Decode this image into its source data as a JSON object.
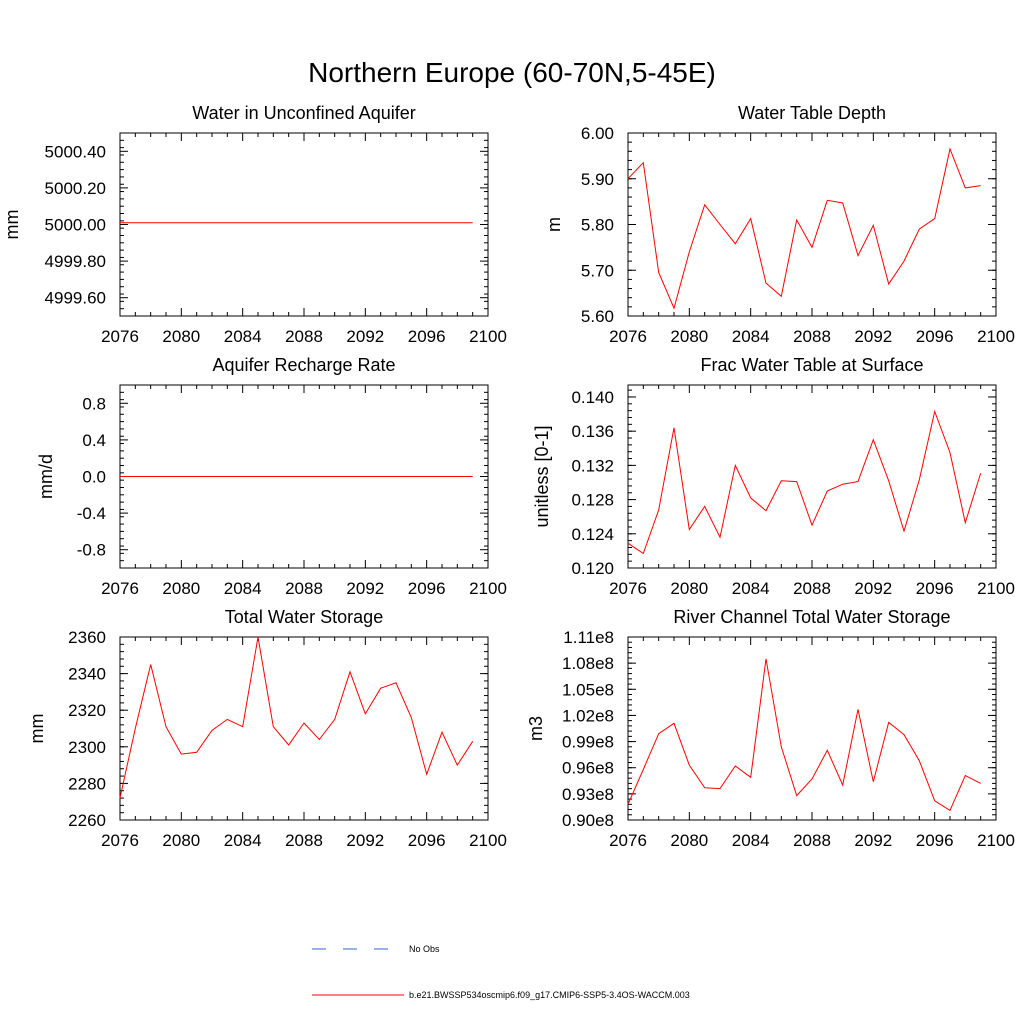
{
  "figure_title": "Northern Europe (60-70N,5-45E)",
  "colors": {
    "series": "#ff0000",
    "obs": "#3a5fcd",
    "axis": "#000000"
  },
  "legend": {
    "obs_label": "No Obs",
    "model_label": "b.e21.BWSSP534oscmip6.f09_g17.CMIP6-SSP5-3.4OS-WACCM.003"
  },
  "chart_data": [
    {
      "type": "line",
      "title": "Water in Unconfined Aquifer",
      "xlabel": "",
      "ylabel": "mm",
      "xlim": [
        2076,
        2100
      ],
      "xticks": [
        "2076",
        "2080",
        "2084",
        "2088",
        "2092",
        "2096",
        "2100"
      ],
      "ylim": [
        4999.5,
        5000.5
      ],
      "yticks": [
        "4999.60",
        "4999.80",
        "5000.00",
        "5000.20",
        "5000.40"
      ],
      "x": [
        2076,
        2077,
        2078,
        2079,
        2080,
        2081,
        2082,
        2083,
        2084,
        2085,
        2086,
        2087,
        2088,
        2089,
        2090,
        2091,
        2092,
        2093,
        2094,
        2095,
        2096,
        2097,
        2098,
        2099
      ],
      "series": [
        {
          "name": "b.e21.BWSSP534oscmip6.f09_g17.CMIP6-SSP5-3.4OS-WACCM.003",
          "values": [
            5000.01,
            5000.01,
            5000.01,
            5000.01,
            5000.01,
            5000.01,
            5000.01,
            5000.01,
            5000.01,
            5000.01,
            5000.01,
            5000.01,
            5000.01,
            5000.01,
            5000.01,
            5000.01,
            5000.01,
            5000.01,
            5000.01,
            5000.01,
            5000.01,
            5000.01,
            5000.01,
            5000.01
          ]
        }
      ]
    },
    {
      "type": "line",
      "title": "Water Table Depth",
      "xlabel": "",
      "ylabel": "m",
      "xlim": [
        2076,
        2100
      ],
      "xticks": [
        "2076",
        "2080",
        "2084",
        "2088",
        "2092",
        "2096",
        "2100"
      ],
      "ylim": [
        5.6,
        6.0
      ],
      "yticks": [
        "5.60",
        "5.70",
        "5.80",
        "5.90",
        "6.00"
      ],
      "x": [
        2076,
        2077,
        2078,
        2079,
        2080,
        2081,
        2082,
        2083,
        2084,
        2085,
        2086,
        2087,
        2088,
        2089,
        2090,
        2091,
        2092,
        2093,
        2094,
        2095,
        2096,
        2097,
        2098,
        2099
      ],
      "series": [
        {
          "name": "b.e21.BWSSP534oscmip6.f09_g17.CMIP6-SSP5-3.4OS-WACCM.003",
          "values": [
            5.9,
            5.935,
            5.695,
            5.617,
            5.74,
            5.843,
            5.8,
            5.758,
            5.813,
            5.672,
            5.643,
            5.81,
            5.75,
            5.853,
            5.847,
            5.732,
            5.798,
            5.67,
            5.72,
            5.79,
            5.813,
            5.965,
            5.88,
            5.885
          ]
        }
      ]
    },
    {
      "type": "line",
      "title": "Aquifer Recharge Rate",
      "xlabel": "",
      "ylabel": "mm/d",
      "xlim": [
        2076,
        2100
      ],
      "xticks": [
        "2076",
        "2080",
        "2084",
        "2088",
        "2092",
        "2096",
        "2100"
      ],
      "ylim": [
        -1.0,
        1.0
      ],
      "yticks": [
        "-0.8",
        "-0.4",
        "0.0",
        "0.4",
        "0.8"
      ],
      "x": [
        2076,
        2077,
        2078,
        2079,
        2080,
        2081,
        2082,
        2083,
        2084,
        2085,
        2086,
        2087,
        2088,
        2089,
        2090,
        2091,
        2092,
        2093,
        2094,
        2095,
        2096,
        2097,
        2098,
        2099
      ],
      "series": [
        {
          "name": "b.e21.BWSSP534oscmip6.f09_g17.CMIP6-SSP5-3.4OS-WACCM.003",
          "values": [
            0,
            0,
            0,
            0,
            0,
            0,
            0,
            0,
            0,
            0,
            0,
            0,
            0,
            0,
            0,
            0,
            0,
            0,
            0,
            0,
            0,
            0,
            0,
            0
          ]
        }
      ]
    },
    {
      "type": "line",
      "title": "Frac Water Table at Surface",
      "xlabel": "",
      "ylabel": "unitless [0-1]",
      "xlim": [
        2076,
        2100
      ],
      "xticks": [
        "2076",
        "2080",
        "2084",
        "2088",
        "2092",
        "2096",
        "2100"
      ],
      "ylim": [
        0.12,
        0.1414
      ],
      "yticks": [
        "0.120",
        "0.124",
        "0.128",
        "0.132",
        "0.136",
        "0.140"
      ],
      "x": [
        2076,
        2077,
        2078,
        2079,
        2080,
        2081,
        2082,
        2083,
        2084,
        2085,
        2086,
        2087,
        2088,
        2089,
        2090,
        2091,
        2092,
        2093,
        2094,
        2095,
        2096,
        2097,
        2098,
        2099
      ],
      "series": [
        {
          "name": "b.e21.BWSSP534oscmip6.f09_g17.CMIP6-SSP5-3.4OS-WACCM.003",
          "values": [
            0.1229,
            0.1217,
            0.1268,
            0.1364,
            0.1245,
            0.1272,
            0.1236,
            0.132,
            0.1282,
            0.1267,
            0.1302,
            0.1301,
            0.125,
            0.129,
            0.1298,
            0.1301,
            0.135,
            0.1302,
            0.1243,
            0.1303,
            0.1383,
            0.1335,
            0.1253,
            0.1311
          ]
        }
      ]
    },
    {
      "type": "line",
      "title": "Total Water Storage",
      "xlabel": "",
      "ylabel": "mm",
      "xlim": [
        2076,
        2100
      ],
      "xticks": [
        "2076",
        "2080",
        "2084",
        "2088",
        "2092",
        "2096",
        "2100"
      ],
      "ylim": [
        2260,
        2360
      ],
      "yticks": [
        "2260",
        "2280",
        "2300",
        "2320",
        "2340",
        "2360"
      ],
      "x": [
        2076,
        2077,
        2078,
        2079,
        2080,
        2081,
        2082,
        2083,
        2084,
        2085,
        2086,
        2087,
        2088,
        2089,
        2090,
        2091,
        2092,
        2093,
        2094,
        2095,
        2096,
        2097,
        2098,
        2099
      ],
      "series": [
        {
          "name": "b.e21.BWSSP534oscmip6.f09_g17.CMIP6-SSP5-3.4OS-WACCM.003",
          "values": [
            2272,
            2310,
            2345,
            2311,
            2296,
            2297,
            2309,
            2315,
            2311,
            2360,
            2311,
            2301,
            2313,
            2304,
            2315,
            2341,
            2318,
            2332,
            2335,
            2316,
            2285,
            2308,
            2290,
            2303
          ]
        }
      ]
    },
    {
      "type": "line",
      "title": "River Channel Total Water Storage",
      "xlabel": "",
      "ylabel": "m3",
      "xlim": [
        2076,
        2100
      ],
      "xticks": [
        "2076",
        "2080",
        "2084",
        "2088",
        "2092",
        "2096",
        "2100"
      ],
      "ylim": [
        90000000.0,
        111000000.0
      ],
      "yticks": [
        "0.90e8",
        "0.93e8",
        "0.96e8",
        "0.99e8",
        "1.02e8",
        "1.05e8",
        "1.08e8",
        "1.11e8"
      ],
      "x": [
        2076,
        2077,
        2078,
        2079,
        2080,
        2081,
        2082,
        2083,
        2084,
        2085,
        2086,
        2087,
        2088,
        2089,
        2090,
        2091,
        2092,
        2093,
        2094,
        2095,
        2096,
        2097,
        2098,
        2099
      ],
      "series": [
        {
          "name": "b.e21.BWSSP534oscmip6.f09_g17.CMIP6-SSP5-3.4OS-WACCM.003",
          "values": [
            91800000.0,
            95800000.0,
            99900000.0,
            101100000.0,
            96300000.0,
            93700000.0,
            93600000.0,
            96200000.0,
            94900000.0,
            108500000.0,
            98400000.0,
            92800000.0,
            94700000.0,
            98000000.0,
            94000000.0,
            102700000.0,
            94400000.0,
            101200000.0,
            99800000.0,
            96800000.0,
            92200000.0,
            91100000.0,
            95100000.0,
            94200000.0
          ]
        }
      ]
    }
  ]
}
